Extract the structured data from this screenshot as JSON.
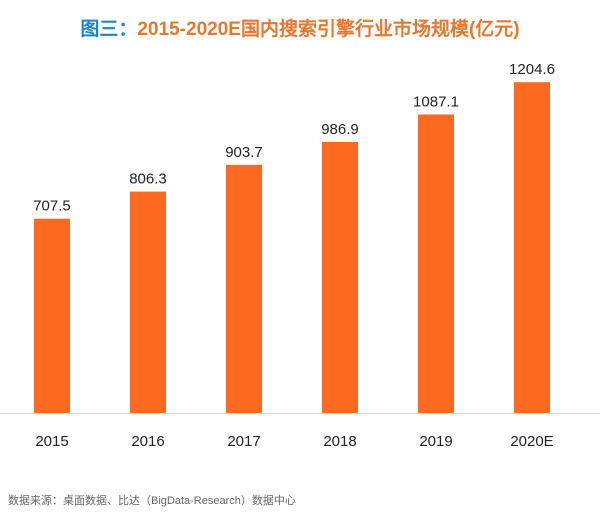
{
  "title": {
    "prefix": "图三：",
    "text": "2015-2020E国内搜索引擎行业市场规模(亿元)"
  },
  "chart_data": {
    "type": "bar",
    "title": "图三：2015-2020E国内搜索引擎行业市场规模(亿元)",
    "categories": [
      "2015",
      "2016",
      "2017",
      "2018",
      "2019",
      "2020E"
    ],
    "values": [
      707.5,
      806.3,
      903.7,
      986.9,
      1087.1,
      1204.6
    ],
    "value_labels": [
      "707.5",
      "806.3",
      "903.7",
      "986.9",
      "1087.1",
      "1204.6"
    ],
    "xlabel": "",
    "ylabel": "",
    "ylim": [
      0,
      1300
    ],
    "bar_color": "#ff6a21",
    "grid": false,
    "y_axis_visible": false
  },
  "source": "数据来源：桌面数据、比达（BigData-Research）数据中心"
}
